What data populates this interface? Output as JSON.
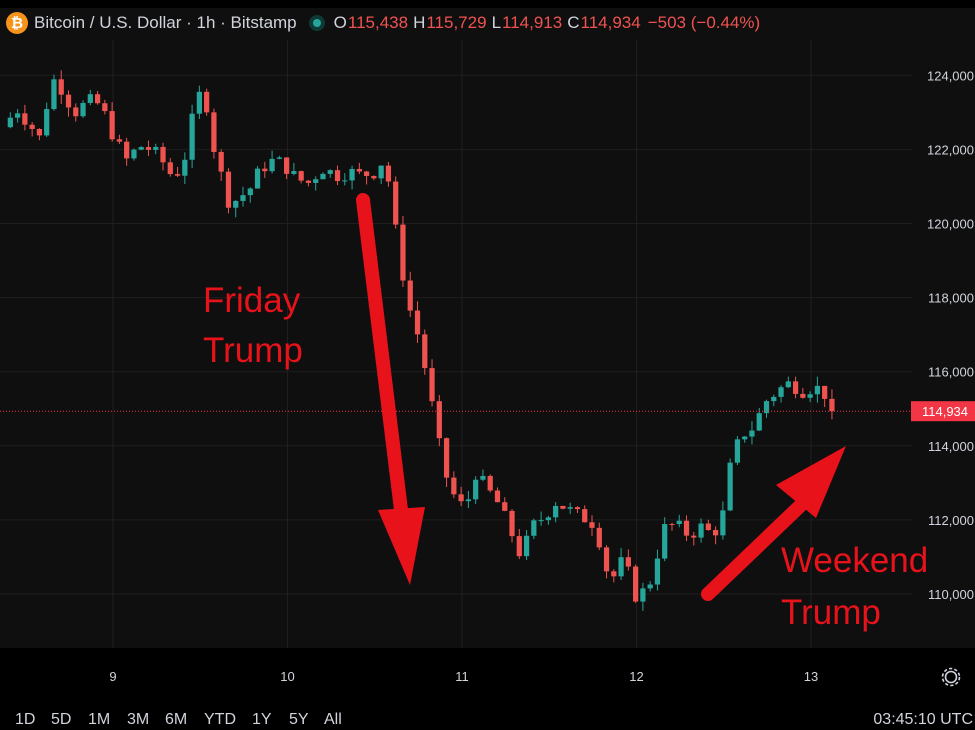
{
  "header": {
    "logo_glyph": "₿",
    "title": "Bitcoin / U.S. Dollar · 1h · Bitstamp",
    "ohlc": [
      {
        "label": "O",
        "value": "115,438"
      },
      {
        "label": "H",
        "value": "115,729"
      },
      {
        "label": "L",
        "value": "114,913"
      },
      {
        "label": "C",
        "value": "114,934"
      }
    ],
    "change": "−503 (−0.44%)"
  },
  "timeframes": [
    "1D",
    "5D",
    "1M",
    "3M",
    "6M",
    "YTD",
    "1Y",
    "5Y",
    "All"
  ],
  "clock": "03:45:10 UTC",
  "colors": {
    "up": "#26a69a",
    "down": "#ef5350",
    "annotation": "#e8121b",
    "last_price_tag": "#f23645",
    "background": "#0f0f0f"
  },
  "icons": {
    "settings": "gear-icon"
  },
  "chart_data": {
    "type": "candlestick",
    "title": "Bitcoin / U.S. Dollar · 1h · Bitstamp",
    "x_ticks": [
      "9",
      "10",
      "11",
      "12",
      "13"
    ],
    "x_tick_positions_days": [
      9,
      10,
      11,
      12,
      13
    ],
    "x_start_day": 8.37,
    "x_end_day": 13.13,
    "ylim": [
      108700,
      125300
    ],
    "y_ticks": [
      110000,
      112000,
      114000,
      116000,
      118000,
      120000,
      122000,
      124000
    ],
    "y_tick_labels": [
      "110,000",
      "112,000",
      "114,000",
      "116,000",
      "118,000",
      "120,000",
      "122,000",
      "124,000"
    ],
    "last_price": 114934,
    "last_price_label": "114,934",
    "grid": true,
    "path": [
      [
        8.37,
        122600
      ],
      [
        8.45,
        123100
      ],
      [
        8.52,
        122700
      ],
      [
        8.58,
        122300
      ],
      [
        8.62,
        123200
      ],
      [
        8.67,
        124000
      ],
      [
        8.72,
        123500
      ],
      [
        8.78,
        123000
      ],
      [
        8.86,
        123300
      ],
      [
        8.93,
        123200
      ],
      [
        8.98,
        122600
      ],
      [
        9.03,
        122100
      ],
      [
        9.08,
        121700
      ],
      [
        9.15,
        122100
      ],
      [
        9.22,
        122000
      ],
      [
        9.28,
        121700
      ],
      [
        9.35,
        121200
      ],
      [
        9.42,
        121900
      ],
      [
        9.47,
        123200
      ],
      [
        9.52,
        123700
      ],
      [
        9.57,
        122200
      ],
      [
        9.62,
        121300
      ],
      [
        9.67,
        120500
      ],
      [
        9.72,
        120700
      ],
      [
        9.78,
        120900
      ],
      [
        9.85,
        121500
      ],
      [
        9.92,
        121700
      ],
      [
        9.98,
        121600
      ],
      [
        10.05,
        121200
      ],
      [
        10.12,
        121100
      ],
      [
        10.2,
        121500
      ],
      [
        10.28,
        121300
      ],
      [
        10.35,
        121400
      ],
      [
        10.42,
        121300
      ],
      [
        10.5,
        121400
      ],
      [
        10.56,
        121800
      ],
      [
        10.6,
        120400
      ],
      [
        10.65,
        118900
      ],
      [
        10.7,
        117700
      ],
      [
        10.76,
        116800
      ],
      [
        10.82,
        115300
      ],
      [
        10.87,
        114000
      ],
      [
        10.92,
        113000
      ],
      [
        10.97,
        112500
      ],
      [
        11.02,
        112300
      ],
      [
        11.08,
        113300
      ],
      [
        11.13,
        112900
      ],
      [
        11.2,
        112500
      ],
      [
        11.27,
        111800
      ],
      [
        11.34,
        111000
      ],
      [
        11.4,
        111800
      ],
      [
        11.47,
        112100
      ],
      [
        11.54,
        112500
      ],
      [
        11.6,
        112300
      ],
      [
        11.67,
        112100
      ],
      [
        11.74,
        112000
      ],
      [
        11.8,
        111300
      ],
      [
        11.85,
        110200
      ],
      [
        11.9,
        110900
      ],
      [
        11.95,
        110600
      ],
      [
        12.0,
        109900
      ],
      [
        12.07,
        110200
      ],
      [
        12.12,
        111100
      ],
      [
        12.17,
        111900
      ],
      [
        12.24,
        111800
      ],
      [
        12.3,
        111600
      ],
      [
        12.37,
        111800
      ],
      [
        12.44,
        111600
      ],
      [
        12.5,
        112200
      ],
      [
        12.54,
        113500
      ],
      [
        12.6,
        114300
      ],
      [
        12.67,
        114500
      ],
      [
        12.74,
        115200
      ],
      [
        12.81,
        115500
      ],
      [
        12.88,
        115700
      ],
      [
        12.95,
        115500
      ],
      [
        13.02,
        115600
      ],
      [
        13.08,
        115400
      ],
      [
        13.13,
        114934
      ]
    ]
  },
  "annotations": {
    "left_lines": [
      "Friday",
      "Trump"
    ],
    "right_lines": [
      "Weekend",
      "Trump"
    ]
  }
}
